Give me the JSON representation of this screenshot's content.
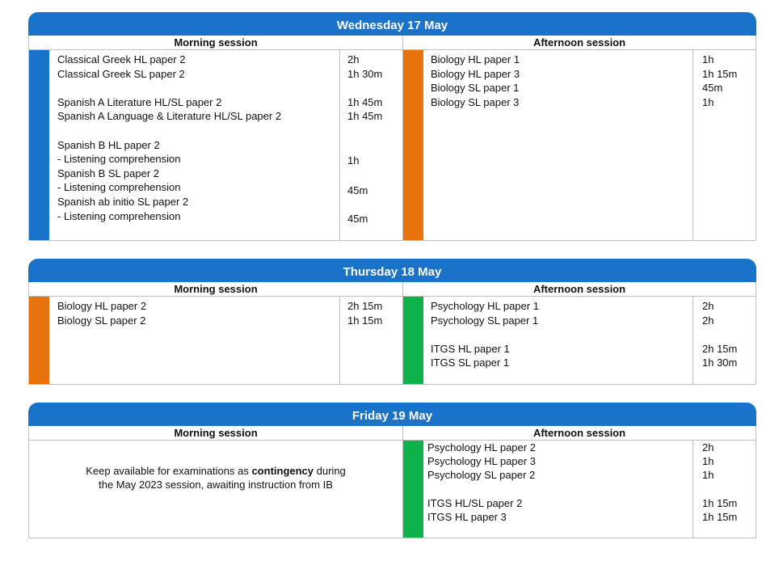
{
  "days": [
    {
      "title": "Wednesday 17 May",
      "morning_label": "Morning session",
      "afternoon_label": "Afternoon session",
      "morning_color": "#1a73c9",
      "afternoon_color": "#e8720c",
      "morning_items": [
        {
          "subject": "Classical Greek HL paper 2",
          "duration": "2h"
        },
        {
          "subject": "Classical Greek SL paper 2",
          "duration": "1h 30m"
        },
        {
          "subject": "",
          "duration": ""
        },
        {
          "subject": "Spanish A Literature HL/SL paper 2",
          "duration": "1h 45m"
        },
        {
          "subject": "Spanish A Language & Literature HL/SL paper 2",
          "duration": "1h 45m"
        },
        {
          "subject": "",
          "duration": ""
        },
        {
          "subject": "Spanish B HL paper 2",
          "duration": ""
        },
        {
          "subject": "- Listening comprehension",
          "duration": "1h"
        },
        {
          "subject": "Spanish B SL paper 2",
          "duration": ""
        },
        {
          "subject": "- Listening comprehension",
          "duration": "45m"
        },
        {
          "subject": "Spanish ab initio SL paper 2",
          "duration": ""
        },
        {
          "subject": "- Listening comprehension",
          "duration": "45m"
        }
      ],
      "afternoon_items": [
        {
          "subject": "Biology HL paper 1",
          "duration": "1h"
        },
        {
          "subject": "Biology HL paper 3",
          "duration": "1h 15m"
        },
        {
          "subject": "Biology SL paper 1",
          "duration": "45m"
        },
        {
          "subject": "Biology SL paper 3",
          "duration": "1h"
        }
      ]
    },
    {
      "title": "Thursday 18 May",
      "morning_label": "Morning session",
      "afternoon_label": "Afternoon session",
      "morning_color": "#e8720c",
      "afternoon_color": "#0fb14b",
      "morning_items": [
        {
          "subject": "Biology HL paper 2",
          "duration": "2h 15m"
        },
        {
          "subject": "Biology SL paper 2",
          "duration": "1h 15m"
        }
      ],
      "afternoon_items": [
        {
          "subject": "Psychology HL paper 1",
          "duration": "2h"
        },
        {
          "subject": "Psychology SL paper 1",
          "duration": "2h"
        },
        {
          "subject": "",
          "duration": ""
        },
        {
          "subject": "ITGS HL paper 1",
          "duration": "2h 15m"
        },
        {
          "subject": "ITGS SL paper 1",
          "duration": "1h 30m"
        }
      ]
    },
    {
      "title": "Friday 19 May",
      "morning_label": "Morning session",
      "afternoon_label": "Afternoon session",
      "afternoon_color": "#0fb14b",
      "morning_note_before": "Keep available for examinations as ",
      "morning_note_bold": "contingency",
      "morning_note_after": " during",
      "morning_note_line2": "the May 2023 session, awaiting instruction from IB",
      "afternoon_items": [
        {
          "subject": "Psychology HL paper 2",
          "duration": "2h"
        },
        {
          "subject": "Psychology HL paper 3",
          "duration": "1h"
        },
        {
          "subject": "Psychology SL paper 2",
          "duration": "1h"
        },
        {
          "subject": "",
          "duration": ""
        },
        {
          "subject": "ITGS HL/SL paper 2",
          "duration": "1h 15m"
        },
        {
          "subject": "ITGS HL paper 3",
          "duration": "1h 15m"
        }
      ]
    }
  ]
}
